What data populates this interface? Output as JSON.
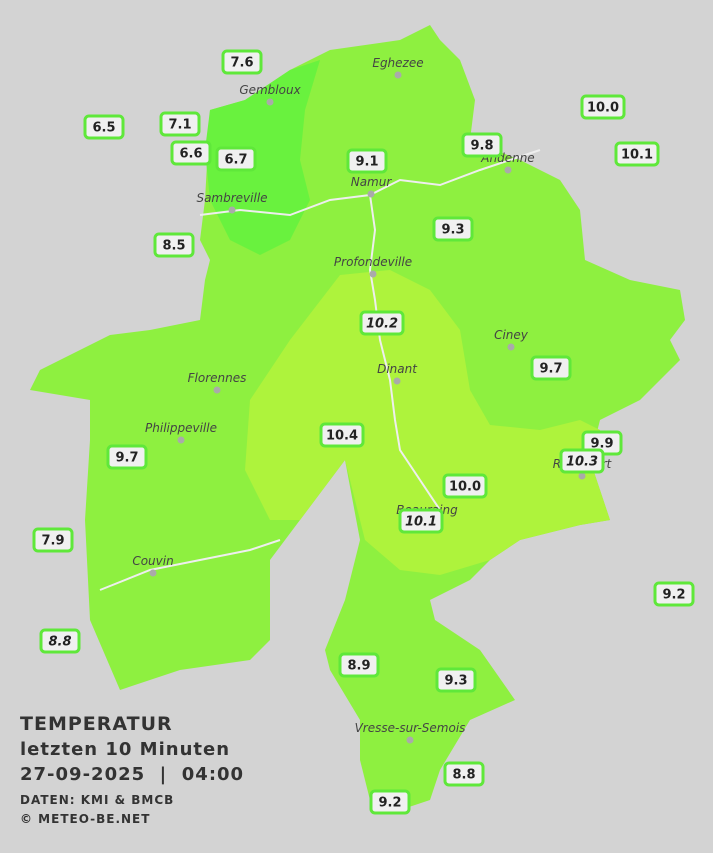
{
  "title": "TEMPERATUR",
  "subtitle": "letzten 10 Minuten",
  "timestamp": "27-09-2025  |  04:00",
  "source": "DATEN: KMI & BMCB",
  "copyright": "© METEO-BE.NET",
  "towns": [
    "Eghezee",
    "Gembloux",
    "Andenne",
    "Namur",
    "Sambreville",
    "Profondeville",
    "Ciney",
    "Dinant",
    "Florennes",
    "Philippeville",
    "Rochefort",
    "Beauraing",
    "Couvin",
    "Vresse-sur-Semois"
  ],
  "stations": [
    "7.6",
    "6.5",
    "7.1",
    "6.6",
    "6.7",
    "9.1",
    "9.8",
    "10.0",
    "10.1",
    "8.5",
    "9.3",
    "10.2",
    "9.7",
    "10.4",
    "9.9",
    "10.3",
    "9.7",
    "10.0",
    "10.1",
    "7.9",
    "9.2",
    "8.8",
    "8.9",
    "9.3",
    "8.8",
    "9.2"
  ]
}
